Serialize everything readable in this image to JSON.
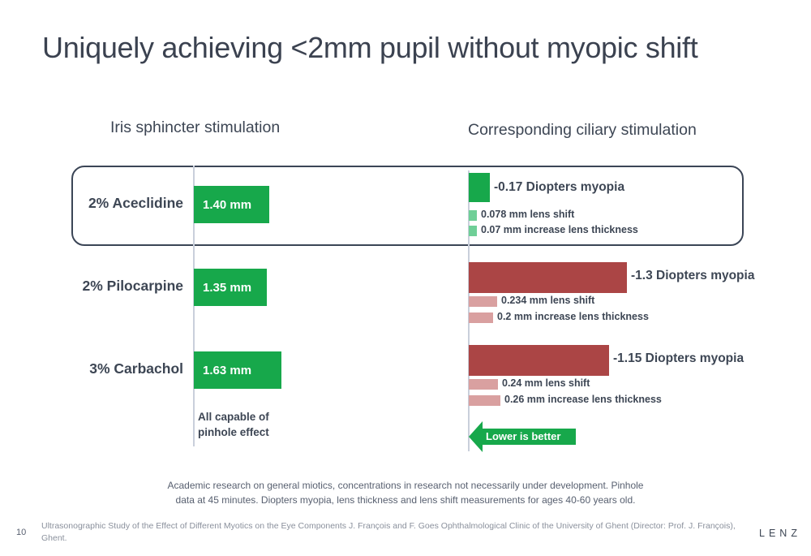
{
  "title": "Uniquely achieving <2mm pupil without myopic shift",
  "left_heading": "Iris sphincter stimulation",
  "right_heading": "Corresponding ciliary stimulation",
  "note_line1": "All capable of",
  "note_line2": "pinhole effect",
  "arrow_label": "Lower is better",
  "footnote_line1": "Academic research on general miotics, concentrations in research not necessarily under development. Pinhole",
  "footnote_line2": "data at 45 minutes. Diopters myopia, lens thickness and lens shift measurements for ages 40-60 years old.",
  "citation": "Ultrasonographic Study of the Effect of Different Myotics on the Eye Components J. François and F. Goes Ophthalmological Clinic of the University of Ghent (Director: Prof. J. François), Ghent.",
  "page_number": "10",
  "brand": "LENZ",
  "colors": {
    "pupil_bar": "#17a84b",
    "aceclidine_myopia": "#17a84b",
    "aceclidine_small": "#6fcf97",
    "other_myopia": "#ab4545",
    "other_small": "#d9a0a0",
    "arrow": "#17a84b"
  },
  "chart_data": [
    {
      "type": "bar",
      "categories": [
        "2% Aceclidine",
        "2% Pilocarpine",
        "3% Carbachol"
      ],
      "series": [
        {
          "values": [
            1.4,
            1.35,
            1.63
          ],
          "labels": [
            "1.40 mm",
            "1.35 mm",
            "1.63 mm"
          ]
        }
      ]
    },
    {
      "type": "bar",
      "categories": [
        "2% Aceclidine",
        "2% Pilocarpine",
        "3% Carbachol"
      ],
      "series": [
        {
          "values": [
            -0.17,
            -1.3,
            -1.15
          ],
          "labels": [
            "-0.17 Diopters myopia",
            "-1.3 Diopters myopia",
            "-1.15 Diopters myopia"
          ]
        },
        {
          "values": [
            0.078,
            0.234,
            0.24
          ],
          "labels": [
            "0.078 mm lens shift",
            "0.234 mm lens shift",
            "0.24 mm lens shift"
          ]
        },
        {
          "values": [
            0.07,
            0.2,
            0.26
          ],
          "labels": [
            "0.07 mm increase lens thickness",
            "0.2 mm increase lens thickness",
            "0.26 mm increase lens thickness"
          ]
        }
      ]
    }
  ]
}
